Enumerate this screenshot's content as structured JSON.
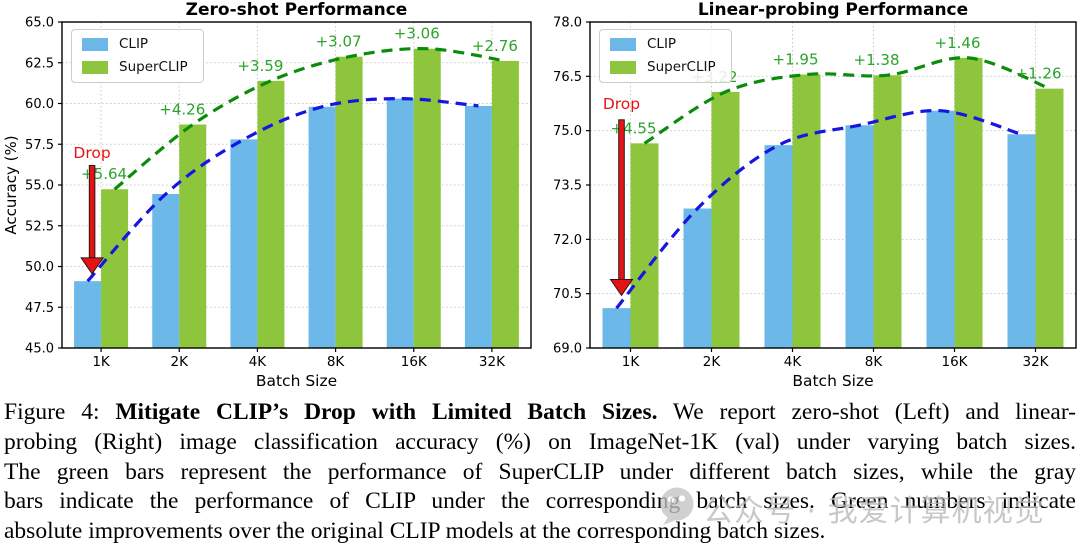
{
  "figure": {
    "caption": {
      "lines": [
        [
          {
            "t": "Figure 4: ",
            "b": false
          },
          {
            "t": "Mitigate CLIP’s Drop with Limited Batch Sizes.",
            "b": true
          },
          {
            "t": " We report zero-shot (Left) and linear-",
            "b": false
          }
        ],
        [
          {
            "t": "probing (Right) image classification accuracy (%) on ImageNet-1K (val) under varying batch sizes.",
            "b": false
          }
        ],
        [
          {
            "t": "The green bars represent the performance of SuperCLIP under different batch sizes, while the gray",
            "b": false
          }
        ],
        [
          {
            "t": "bars indicate the performance of CLIP under the corresponding batch sizes. Green numbers indicate",
            "b": false
          }
        ],
        [
          {
            "t": "absolute improvements over the original CLIP models at the corresponding batch sizes.",
            "b": false
          }
        ]
      ]
    },
    "watermark": {
      "icon": "wechat-official-account-logo",
      "text": "公众号 · 我爱计算机视觉"
    }
  },
  "colors": {
    "clip_bar": "#6cb8e9",
    "superclip_bar": "#8dc63d",
    "clip_line": "#1616e0",
    "superclip_line": "#0a8c0a",
    "improvement_text": "#2aa42a",
    "drop_red": "#e51414",
    "grid": "#c9c9c9",
    "axis": "#000000",
    "watermark_gray": "#b9b9b9"
  },
  "chart_data": [
    {
      "type": "bar",
      "title": "Zero-shot Performance",
      "xlabel": "Batch Size",
      "ylabel": "Accuracy (%)",
      "categories": [
        "1K",
        "2K",
        "4K",
        "8K",
        "16K",
        "32K"
      ],
      "series": [
        {
          "name": "CLIP",
          "values": [
            49.1,
            54.45,
            57.8,
            59.8,
            60.3,
            59.85
          ]
        },
        {
          "name": "SuperCLIP",
          "values": [
            54.74,
            58.71,
            61.39,
            62.87,
            63.36,
            62.61
          ]
        }
      ],
      "improvement_labels": [
        "+5.64",
        "+4.26",
        "+3.59",
        "+3.07",
        "+3.06",
        "+2.76"
      ],
      "ylim": [
        45.0,
        65.0
      ],
      "ytick_step": 2.5,
      "grid": true,
      "legend_position": "upper left",
      "trend_lines": true,
      "drop_annotation": {
        "label": "Drop",
        "text_y": 56.65,
        "arrow_top": 56.2,
        "arrow_tip": 49.55
      }
    },
    {
      "type": "bar",
      "title": "Linear-probing Performance",
      "xlabel": "Batch Size",
      "ylabel": "",
      "categories": [
        "1K",
        "2K",
        "4K",
        "8K",
        "16K",
        "32K"
      ],
      "series": [
        {
          "name": "CLIP",
          "values": [
            70.1,
            72.85,
            74.6,
            75.15,
            75.55,
            74.9
          ]
        },
        {
          "name": "SuperCLIP",
          "values": [
            74.65,
            76.07,
            76.55,
            76.53,
            77.01,
            76.16
          ]
        }
      ],
      "improvement_labels": [
        "+4.55",
        "+3.22",
        "+1.95",
        "+1.38",
        "+1.46",
        "+1.26"
      ],
      "ylim": [
        69.0,
        78.0
      ],
      "ytick_step": 1.5,
      "grid": true,
      "legend_position": "upper left",
      "trend_lines": true,
      "drop_annotation": {
        "label": "Drop",
        "text_y": 75.6,
        "arrow_top": 75.3,
        "arrow_tip": 70.45
      }
    }
  ]
}
